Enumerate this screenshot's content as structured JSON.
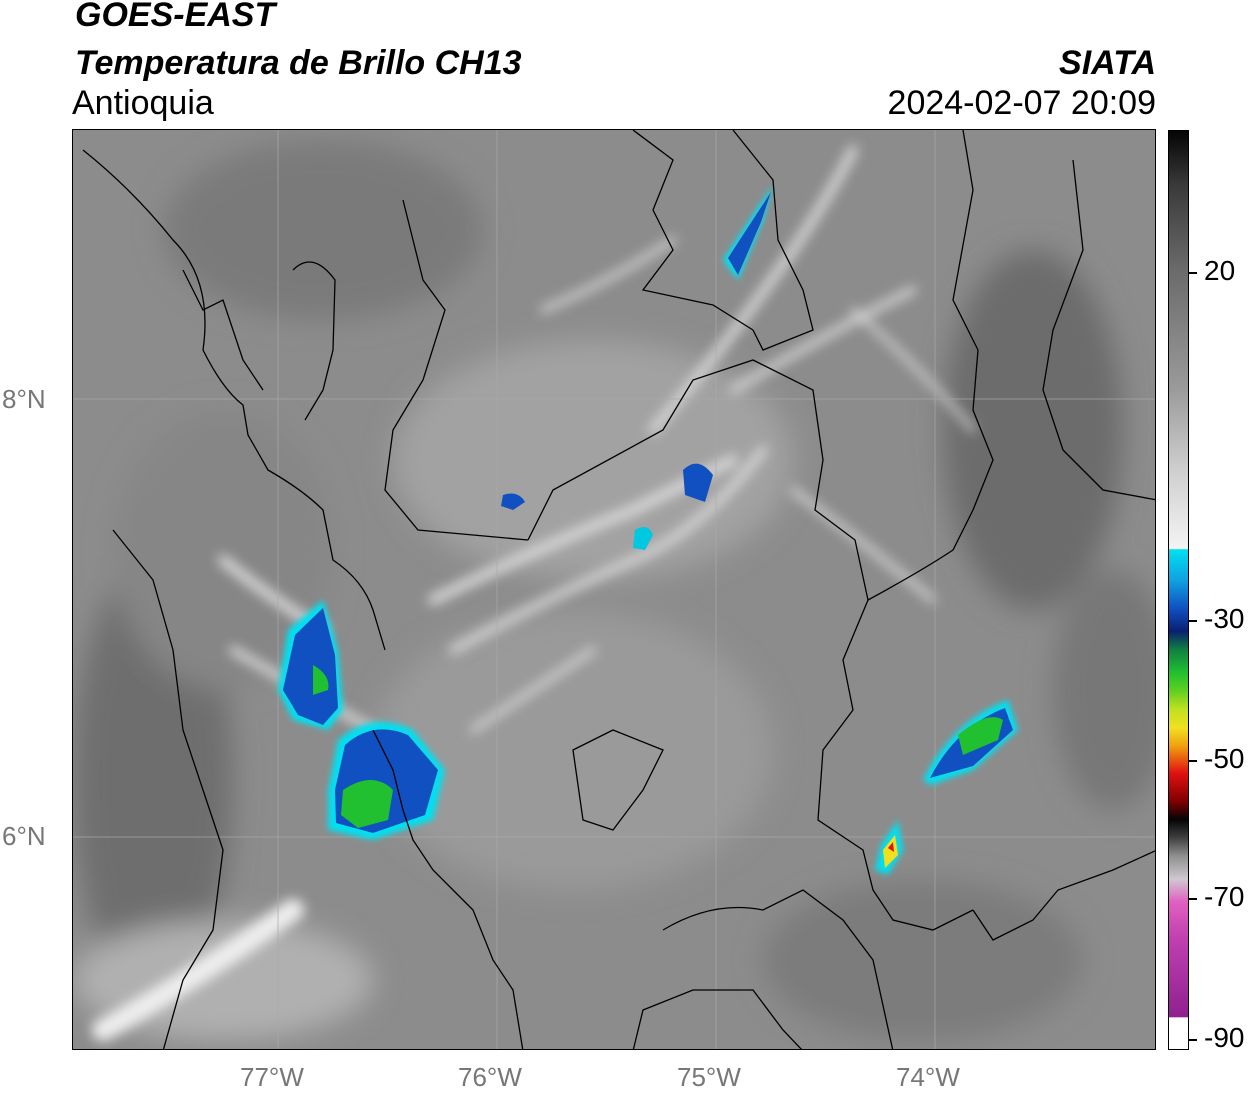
{
  "header": {
    "satellite": "GOES-EAST",
    "product": "Temperatura de Brillo CH13",
    "region": "Antioquia",
    "organization": "SIATA",
    "timestamp": "2024-02-07 20:09"
  },
  "axes": {
    "lat_labels": [
      "8°N",
      "6°N"
    ],
    "lon_labels": [
      "77°W",
      "76°W",
      "75°W",
      "74°W"
    ]
  },
  "colorbar": {
    "tick_labels": [
      "20",
      "-30",
      "-50",
      "-70",
      "-90"
    ],
    "colors": {
      "cyan": "#00e0f0",
      "blue": "#1050c0",
      "navy": "#0a2070",
      "green": "#20c030",
      "yellow": "#f0e020",
      "red": "#e01010",
      "black": "#050505",
      "pink": "#e060c0",
      "purple": "#902090"
    }
  }
}
